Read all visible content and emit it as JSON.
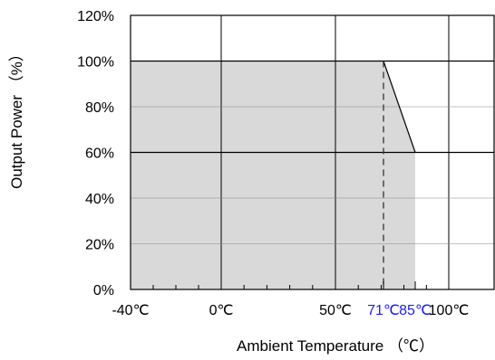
{
  "chart_data": {
    "type": "area",
    "xlabel": "Ambient Temperature （℃）",
    "ylabel": "Output Power （%）",
    "x_ticks": [
      {
        "value": -40,
        "label": "-40℃"
      },
      {
        "value": 0,
        "label": "0℃"
      },
      {
        "value": 50,
        "label": "50℃"
      },
      {
        "value": 71,
        "label": "71℃",
        "color": "#1f1fe0"
      },
      {
        "value": 85,
        "label": "85℃",
        "color": "#1f1fe0"
      },
      {
        "value": 100,
        "label": "100℃"
      }
    ],
    "y_ticks": [
      {
        "value": 0,
        "label": "0%"
      },
      {
        "value": 20,
        "label": "20%"
      },
      {
        "value": 40,
        "label": "40%"
      },
      {
        "value": 60,
        "label": "60%"
      },
      {
        "value": 80,
        "label": "80%"
      },
      {
        "value": 100,
        "label": "100%"
      },
      {
        "value": 120,
        "label": "120%"
      }
    ],
    "xlim": [
      -40,
      110
    ],
    "ylim": [
      0,
      120
    ],
    "series": [
      {
        "x": [
          -40,
          71,
          85,
          85
        ],
        "y": [
          100,
          100,
          60,
          0
        ],
        "fill": "#d9d9d9"
      }
    ],
    "marker_line": {
      "x": 71,
      "y_from": 0,
      "y_to": 100,
      "style": "dashed"
    },
    "grid": true
  }
}
